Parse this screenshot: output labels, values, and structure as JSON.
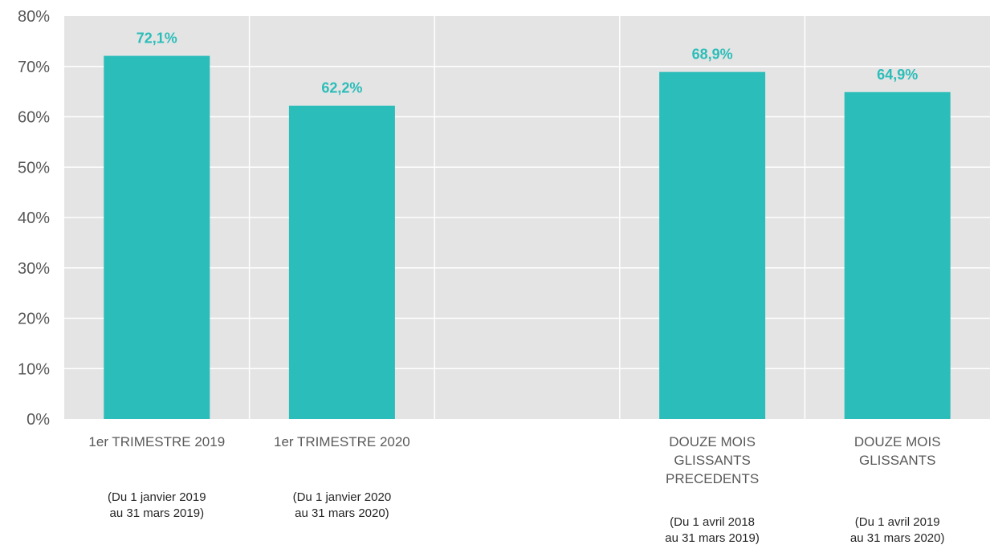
{
  "chart_data": {
    "type": "bar",
    "title": "",
    "xlabel": "",
    "ylabel": "",
    "ylim": [
      0,
      80
    ],
    "y_ticks": [
      "0%",
      "10%",
      "20%",
      "30%",
      "40%",
      "50%",
      "60%",
      "70%",
      "80%"
    ],
    "grid": true,
    "legend": "none",
    "colors": {
      "bar": "#2bbdb9",
      "plot_background": "#e4e4e4",
      "gridline": "#ffffff",
      "data_label": "#2bbdb9",
      "tick_text": "#595959"
    },
    "categories": [
      {
        "label": [
          "1er TRIMESTRE 2019"
        ],
        "note": [
          "(Du 1 janvier 2019",
          "au 31 mars 2019)"
        ]
      },
      {
        "label": [
          "1er TRIMESTRE 2020"
        ],
        "note": [
          "(Du 1 janvier 2020",
          "au 31 mars 2020)"
        ]
      },
      {
        "label": [],
        "note": []
      },
      {
        "label": [
          "DOUZE MOIS",
          "GLISSANTS",
          "PRECEDENTS"
        ],
        "note": [
          "(Du 1 avril 2018",
          "au 31 mars 2019)"
        ]
      },
      {
        "label": [
          "DOUZE MOIS",
          "GLISSANTS"
        ],
        "note": [
          "(Du 1 avril 2019",
          "au 31 mars 2020)"
        ]
      }
    ],
    "values": [
      72.1,
      62.2,
      null,
      68.9,
      64.9
    ],
    "data_labels": [
      "72,1%",
      "62,2%",
      "",
      "68,9%",
      "64,9%"
    ]
  }
}
